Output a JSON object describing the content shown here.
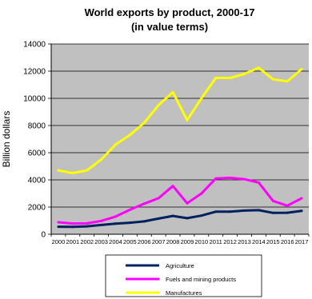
{
  "chart_data": {
    "type": "line",
    "title_line1": "World exports by product, 2000-17",
    "title_line2": "(in value terms)",
    "xlabel": "",
    "ylabel": "Billion dollars",
    "ylim": [
      0,
      14000
    ],
    "yticks": [
      0,
      2000,
      4000,
      6000,
      8000,
      10000,
      12000,
      14000
    ],
    "grid": true,
    "legend_position": "bottom",
    "categories": [
      "2000",
      "2001",
      "2002",
      "2003",
      "2004",
      "2005",
      "2006",
      "2007",
      "2008",
      "2009",
      "2010",
      "2011",
      "2012",
      "2013",
      "2014",
      "2015",
      "2016",
      "2017"
    ],
    "series": [
      {
        "name": "Agriculture",
        "color": "#002060",
        "values": [
          550,
          540,
          580,
          680,
          780,
          850,
          950,
          1150,
          1350,
          1180,
          1370,
          1660,
          1660,
          1740,
          1770,
          1570,
          1580,
          1720
        ]
      },
      {
        "name": "Fuels and mining products",
        "color": "#ff00ff",
        "values": [
          880,
          790,
          800,
          980,
          1300,
          1800,
          2250,
          2650,
          3550,
          2280,
          3000,
          4100,
          4150,
          4050,
          3800,
          2450,
          2100,
          2650
        ]
      },
      {
        "name": "Manufactures",
        "color": "#ffff00",
        "values": [
          4700,
          4500,
          4700,
          5500,
          6600,
          7300,
          8200,
          9500,
          10450,
          8400,
          10000,
          11500,
          11500,
          11800,
          12250,
          11400,
          11250,
          12150
        ]
      }
    ]
  }
}
